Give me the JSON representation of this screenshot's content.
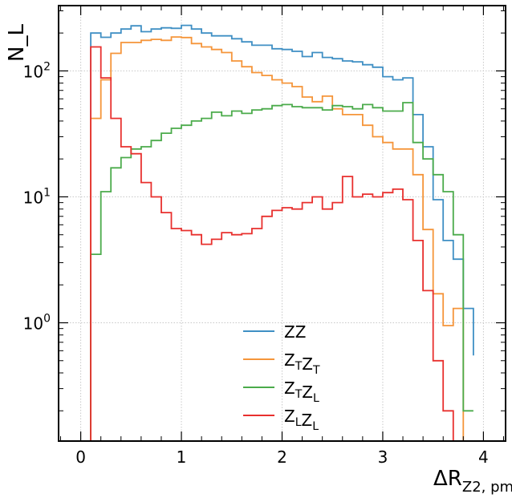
{
  "chart_data": {
    "type": "line",
    "style": "step histogram",
    "title": "",
    "xlabel": "ΔR",
    "xlabel_subscript": "Z2, pm",
    "ylabel": "N_L",
    "yscale": "log",
    "xlim": [
      -0.22,
      4.22
    ],
    "ylim": [
      0.115,
      330
    ],
    "xticks": [
      0,
      1,
      2,
      3,
      4
    ],
    "xtick_labels": [
      "0",
      "1",
      "2",
      "3",
      "4"
    ],
    "yticks": [
      1,
      10,
      100
    ],
    "ytick_labels": [
      [
        "10",
        "0"
      ],
      [
        "10",
        "1"
      ],
      [
        "10",
        "2"
      ]
    ],
    "grid": true,
    "legend_position": "lower-center",
    "bin_edges": [
      0.1,
      0.2,
      0.3,
      0.4,
      0.5,
      0.6,
      0.7,
      0.8,
      0.9,
      1.0,
      1.1,
      1.2,
      1.3,
      1.4,
      1.5,
      1.6,
      1.7,
      1.8,
      1.9,
      2.0,
      2.1,
      2.2,
      2.3,
      2.4,
      2.5,
      2.6,
      2.7,
      2.8,
      2.9,
      3.0,
      3.1,
      3.2,
      3.3,
      3.4,
      3.5,
      3.6,
      3.7,
      3.8,
      3.9
    ],
    "series": [
      {
        "name": "ZZ",
        "label_main": [
          "Z",
          "Z"
        ],
        "label_sub": [
          "",
          ""
        ],
        "color": "#3f8fc4",
        "values": [
          200,
          185,
          200,
          215,
          228,
          205,
          215,
          220,
          218,
          230,
          215,
          200,
          190,
          190,
          180,
          170,
          160,
          160,
          150,
          148,
          143,
          130,
          140,
          128,
          125,
          120,
          118,
          112,
          107,
          90,
          85,
          88,
          45,
          25,
          9.5,
          4.5,
          3.2,
          1.3,
          0.55
        ]
      },
      {
        "name": "ZTZT",
        "label_main": [
          "Z",
          "Z"
        ],
        "label_sub": [
          "T",
          "T"
        ],
        "color": "#f5953a",
        "values": [
          42,
          85,
          138,
          168,
          168,
          175,
          178,
          175,
          186,
          184,
          165,
          155,
          148,
          140,
          120,
          108,
          97,
          92,
          85,
          80,
          75,
          62,
          57,
          63,
          50,
          45,
          45,
          37,
          30,
          27,
          24,
          24,
          15,
          5.5,
          1.7,
          0.95,
          1.3,
          0.1,
          0.1
        ]
      },
      {
        "name": "ZTZL",
        "label_main": [
          "Z",
          "Z"
        ],
        "label_sub": [
          "T",
          "L"
        ],
        "color": "#4bab4b",
        "values": [
          3.5,
          11,
          17,
          20.5,
          24,
          25,
          28,
          32,
          35,
          37,
          40,
          42,
          47,
          44,
          48,
          46,
          49,
          50,
          53,
          54,
          52,
          51,
          51,
          49,
          53,
          52,
          50,
          54,
          51,
          48,
          48,
          56,
          27,
          20,
          15,
          11,
          5,
          0.2,
          0.2
        ]
      },
      {
        "name": "ZLZL",
        "label_main": [
          "Z",
          "Z"
        ],
        "label_sub": [
          "L",
          "L"
        ],
        "color": "#e8302e",
        "values": [
          155,
          88,
          42,
          25,
          22,
          13,
          10,
          7.5,
          5.6,
          5.4,
          5.0,
          4.2,
          4.6,
          5.2,
          5.0,
          5.1,
          5.6,
          7.0,
          7.8,
          8.2,
          8.0,
          9.0,
          10.0,
          8.0,
          9.0,
          14.5,
          10.0,
          10.5,
          10.0,
          10.8,
          11.5,
          9.5,
          4.5,
          1.8,
          0.5,
          0.2,
          0.1,
          0.1,
          0.1
        ]
      }
    ]
  }
}
